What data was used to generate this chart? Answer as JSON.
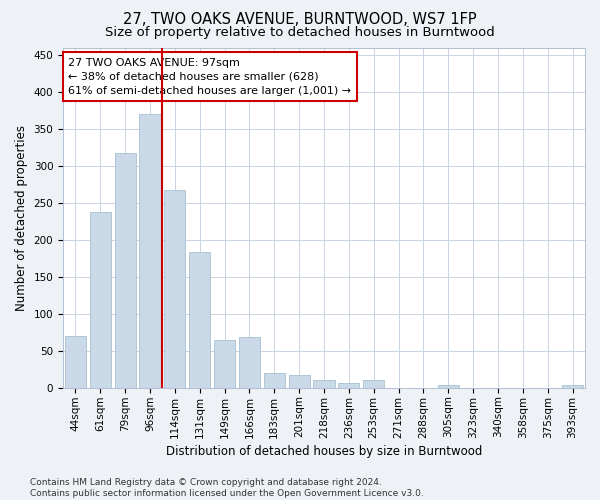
{
  "title": "27, TWO OAKS AVENUE, BURNTWOOD, WS7 1FP",
  "subtitle": "Size of property relative to detached houses in Burntwood",
  "xlabel": "Distribution of detached houses by size in Burntwood",
  "ylabel": "Number of detached properties",
  "categories": [
    "44sqm",
    "61sqm",
    "79sqm",
    "96sqm",
    "114sqm",
    "131sqm",
    "149sqm",
    "166sqm",
    "183sqm",
    "201sqm",
    "218sqm",
    "236sqm",
    "253sqm",
    "271sqm",
    "288sqm",
    "305sqm",
    "323sqm",
    "340sqm",
    "358sqm",
    "375sqm",
    "393sqm"
  ],
  "values": [
    70,
    237,
    317,
    370,
    268,
    184,
    65,
    68,
    20,
    17,
    10,
    6,
    10,
    0,
    0,
    4,
    0,
    0,
    0,
    0,
    4
  ],
  "bar_color": "#c9d9e8",
  "bar_edge_color": "#a8c0d0",
  "vline_x": 3.5,
  "vline_color": "#cc0000",
  "annotation_line1": "27 TWO OAKS AVENUE: 97sqm",
  "annotation_line2": "← 38% of detached houses are smaller (628)",
  "annotation_line3": "61% of semi-detached houses are larger (1,001) →",
  "annotation_box_color": "#ffffff",
  "annotation_box_edge_color": "#cc0000",
  "ylim": [
    0,
    460
  ],
  "yticks": [
    0,
    50,
    100,
    150,
    200,
    250,
    300,
    350,
    400,
    450
  ],
  "footer": "Contains HM Land Registry data © Crown copyright and database right 2024.\nContains public sector information licensed under the Open Government Licence v3.0.",
  "background_color": "#eef2f7",
  "plot_background_color": "#ffffff",
  "grid_color": "#c8d4e0",
  "title_fontsize": 10.5,
  "subtitle_fontsize": 9.5,
  "annotation_fontsize": 8,
  "axis_label_fontsize": 8.5,
  "tick_fontsize": 7.5,
  "footer_fontsize": 6.5
}
